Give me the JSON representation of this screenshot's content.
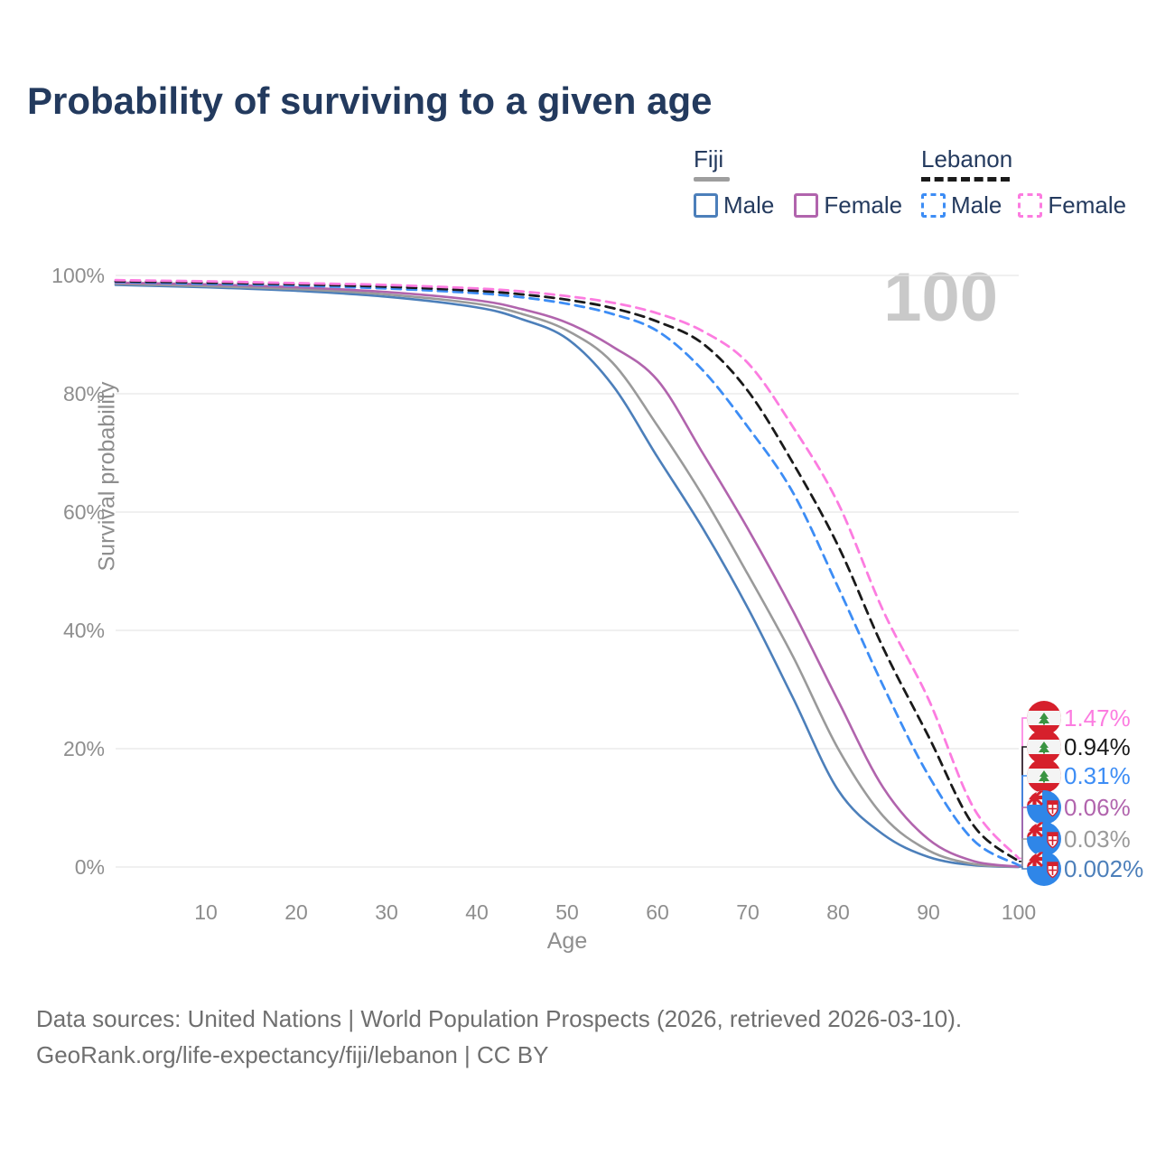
{
  "title": "Probability of surviving to a given age",
  "watermark": "100",
  "legend": {
    "groups": [
      {
        "country": "Fiji",
        "line_style": "solid",
        "underline_color": "#9e9e9e",
        "items": [
          {
            "label": "Male",
            "color": "#4c7fba"
          },
          {
            "label": "Female",
            "color": "#b164ad"
          }
        ]
      },
      {
        "country": "Lebanon",
        "line_style": "dashed",
        "underline_color": "#1a1a1a",
        "items": [
          {
            "label": "Male",
            "color": "#3d8df5"
          },
          {
            "label": "Female",
            "color": "#fc7ce0"
          }
        ]
      }
    ]
  },
  "chart_data": {
    "type": "line",
    "title": "Probability of surviving to a given age",
    "xlabel": "Age",
    "ylabel": "Survival probability",
    "xlim": [
      0,
      100
    ],
    "ylim": [
      0,
      100
    ],
    "grid": "horizontal",
    "legend_position": "top-right",
    "xticks": [
      {
        "value": 10,
        "label": "10"
      },
      {
        "value": 20,
        "label": "20"
      },
      {
        "value": 30,
        "label": "30"
      },
      {
        "value": 40,
        "label": "40"
      },
      {
        "value": 50,
        "label": "50"
      },
      {
        "value": 60,
        "label": "60"
      },
      {
        "value": 70,
        "label": "70"
      },
      {
        "value": 80,
        "label": "80"
      },
      {
        "value": 90,
        "label": "90"
      },
      {
        "value": 100,
        "label": "100"
      }
    ],
    "yticks": [
      {
        "value": 0,
        "label": "0%"
      },
      {
        "value": 20,
        "label": "20%"
      },
      {
        "value": 40,
        "label": "40%"
      },
      {
        "value": 60,
        "label": "60%"
      },
      {
        "value": 80,
        "label": "80%"
      },
      {
        "value": 100,
        "label": "100%"
      }
    ],
    "x": [
      0,
      10,
      20,
      30,
      40,
      45,
      50,
      55,
      60,
      65,
      70,
      75,
      80,
      85,
      90,
      95,
      100
    ],
    "series": [
      {
        "name": "Fiji Male",
        "country": "Fiji",
        "sex": "Male",
        "color": "#4c7fba",
        "dash": "solid",
        "flag": "fiji",
        "end_label": "0.002%",
        "end_label_color": "#4c7fba",
        "values": [
          98.4,
          98.0,
          97.4,
          96.4,
          94.6,
          92.6,
          89.3,
          81.5,
          69.3,
          57.3,
          43.8,
          28.6,
          13.0,
          5.5,
          1.7,
          0.3,
          0.002
        ]
      },
      {
        "name": "Fiji",
        "country": "Fiji",
        "sex": "Both",
        "color": "#9a9a9a",
        "dash": "solid",
        "flag": "fiji",
        "end_label": "0.03%",
        "end_label_color": "#9a9a9a",
        "values": [
          98.6,
          98.2,
          97.7,
          96.8,
          95.2,
          93.5,
          90.7,
          85.3,
          74.6,
          62.8,
          49.5,
          35.6,
          20.0,
          8.6,
          2.8,
          0.5,
          0.03
        ]
      },
      {
        "name": "Fiji Female",
        "country": "Fiji",
        "sex": "Female",
        "color": "#b164ad",
        "dash": "solid",
        "flag": "fiji",
        "end_label": "0.06%",
        "end_label_color": "#b164ad",
        "values": [
          98.8,
          98.5,
          98.0,
          97.2,
          95.8,
          94.3,
          92.0,
          88.0,
          82.3,
          70.0,
          57.2,
          43.3,
          28.1,
          13.4,
          4.7,
          1.0,
          0.06
        ]
      },
      {
        "name": "Lebanon Male",
        "country": "Lebanon",
        "sex": "Male",
        "color": "#3d8df5",
        "dash": "dashed",
        "flag": "lebanon",
        "end_label": "0.31%",
        "end_label_color": "#3d8df5",
        "values": [
          98.9,
          98.6,
          98.3,
          97.8,
          97.0,
          96.3,
          95.2,
          93.5,
          90.6,
          84.0,
          74.4,
          63.3,
          47.3,
          30.6,
          15.5,
          4.5,
          0.31
        ]
      },
      {
        "name": "Lebanon",
        "country": "Lebanon",
        "sex": "Both",
        "color": "#1a1a1a",
        "dash": "dashed",
        "flag": "lebanon",
        "end_label": "0.94%",
        "end_label_color": "#1a1a1a",
        "values": [
          99.0,
          98.8,
          98.5,
          98.1,
          97.4,
          96.8,
          95.9,
          94.5,
          92.2,
          88.5,
          80.5,
          68.3,
          54.3,
          37.0,
          22.1,
          7.0,
          0.94
        ]
      },
      {
        "name": "Lebanon Female",
        "country": "Lebanon",
        "sex": "Female",
        "color": "#fc7ce0",
        "dash": "dashed",
        "flag": "lebanon",
        "end_label": "1.47%",
        "end_label_color": "#fc7ce0",
        "values": [
          99.2,
          99.0,
          98.7,
          98.4,
          97.8,
          97.3,
          96.5,
          95.4,
          93.6,
          90.6,
          85.2,
          74.4,
          61.5,
          43.3,
          28.4,
          10.0,
          1.47
        ]
      }
    ]
  },
  "footer": {
    "line1": "Data sources: United Nations | World Population Prospects (2026, retrieved 2026-03-10).",
    "line2": "GeoRank.org/life-expectancy/fiji/lebanon | CC BY"
  },
  "colors": {
    "title": "#233a5e",
    "axis_text": "#8e8e8e",
    "gridline": "#e6e6e6",
    "watermark": "#c9c9c9",
    "footer_text": "#6f6f6f"
  }
}
